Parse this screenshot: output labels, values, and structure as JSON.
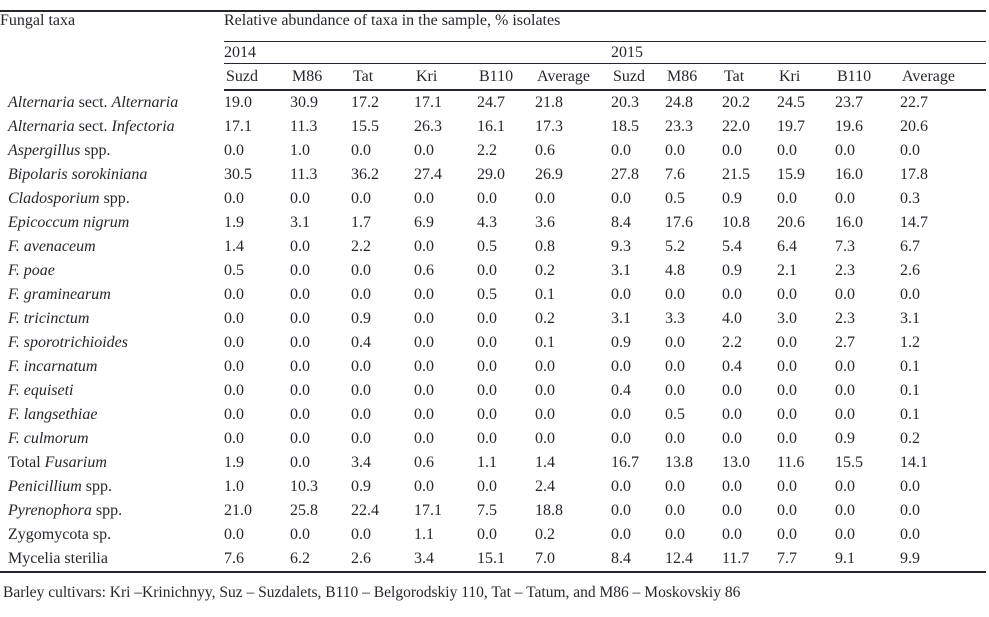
{
  "colors": {
    "text": "#26262e",
    "border": "#26262e",
    "background": "#ffffff"
  },
  "page": {
    "footnote": "Barley cultivars: Kri –Krinichnyy, Suz – Suzdalets, B110 – Belgorodskiy 110, Tat – Tatum, and M86 – Moskovskiy 86"
  },
  "table": {
    "corner_header": "Fungal taxa",
    "span_header": "Relative abundance of taxa in the sample, % isolates",
    "year_2014": "2014",
    "year_2015": "2015",
    "columns": [
      "Suzd",
      "M86",
      "Tat",
      "Kri",
      "B110",
      "Average",
      "Suzd",
      "M86",
      "Tat",
      "Kri",
      "B110",
      "Average"
    ],
    "rows": [
      {
        "name": [
          {
            "t": "Alternaria",
            "i": true
          },
          {
            "t": " sect. ",
            "i": false
          },
          {
            "t": "Alternaria",
            "i": true
          }
        ],
        "values": [
          "19.0",
          "30.9",
          "17.2",
          "17.1",
          "24.7",
          "21.8",
          "20.3",
          "24.8",
          "20.2",
          "24.5",
          "23.7",
          "22.7"
        ]
      },
      {
        "name": [
          {
            "t": "Alternaria",
            "i": true
          },
          {
            "t": " sect. ",
            "i": false
          },
          {
            "t": "Infectoria",
            "i": true
          }
        ],
        "values": [
          "17.1",
          "11.3",
          "15.5",
          "26.3",
          "16.1",
          "17.3",
          "18.5",
          "23.3",
          "22.0",
          "19.7",
          "19.6",
          "20.6"
        ]
      },
      {
        "name": [
          {
            "t": "Aspergillus",
            "i": true
          },
          {
            "t": " spp.",
            "i": false
          }
        ],
        "values": [
          "0.0",
          "1.0",
          "0.0",
          "0.0",
          "2.2",
          "0.6",
          "0.0",
          "0.0",
          "0.0",
          "0.0",
          "0.0",
          "0.0"
        ]
      },
      {
        "name": [
          {
            "t": "Bipolaris sorokiniana",
            "i": true
          }
        ],
        "values": [
          "30.5",
          "11.3",
          "36.2",
          "27.4",
          "29.0",
          "26.9",
          "27.8",
          "7.6",
          "21.5",
          "15.9",
          "16.0",
          "17.8"
        ]
      },
      {
        "name": [
          {
            "t": "Cladosporium",
            "i": true
          },
          {
            "t": " spp.",
            "i": false
          }
        ],
        "values": [
          "0.0",
          "0.0",
          "0.0",
          "0.0",
          "0.0",
          "0.0",
          "0.0",
          "0.5",
          "0.9",
          "0.0",
          "0.0",
          "0.3"
        ]
      },
      {
        "name": [
          {
            "t": "Epicoccum nigrum",
            "i": true
          }
        ],
        "values": [
          "1.9",
          "3.1",
          "1.7",
          "6.9",
          "4.3",
          "3.6",
          "8.4",
          "17.6",
          "10.8",
          "20.6",
          "16.0",
          "14.7"
        ]
      },
      {
        "name": [
          {
            "t": "F. avenaceum",
            "i": true
          }
        ],
        "values": [
          "1.4",
          "0.0",
          "2.2",
          "0.0",
          "0.5",
          "0.8",
          "9.3",
          "5.2",
          "5.4",
          "6.4",
          "7.3",
          "6.7"
        ]
      },
      {
        "name": [
          {
            "t": "F. poae",
            "i": true
          }
        ],
        "values": [
          "0.5",
          "0.0",
          "0.0",
          "0.6",
          "0.0",
          "0.2",
          "3.1",
          "4.8",
          "0.9",
          "2.1",
          "2.3",
          "2.6"
        ]
      },
      {
        "name": [
          {
            "t": "F. graminearum",
            "i": true
          }
        ],
        "values": [
          "0.0",
          "0.0",
          "0.0",
          "0.0",
          "0.5",
          "0.1",
          "0.0",
          "0.0",
          "0.0",
          "0.0",
          "0.0",
          "0.0"
        ]
      },
      {
        "name": [
          {
            "t": "F. tricinctum",
            "i": true
          }
        ],
        "values": [
          "0.0",
          "0.0",
          "0.9",
          "0.0",
          "0.0",
          "0.2",
          "3.1",
          "3.3",
          "4.0",
          "3.0",
          "2.3",
          "3.1"
        ]
      },
      {
        "name": [
          {
            "t": "F. sporotrichioides",
            "i": true
          }
        ],
        "values": [
          "0.0",
          "0.0",
          "0.4",
          "0.0",
          "0.0",
          "0.1",
          "0.9",
          "0.0",
          "2.2",
          "0.0",
          "2.7",
          "1.2"
        ]
      },
      {
        "name": [
          {
            "t": "F. incarnatum",
            "i": true
          }
        ],
        "values": [
          "0.0",
          "0.0",
          "0.0",
          "0.0",
          "0.0",
          "0.0",
          "0.0",
          "0.0",
          "0.4",
          "0.0",
          "0.0",
          "0.1"
        ]
      },
      {
        "name": [
          {
            "t": "F. equiseti",
            "i": true
          }
        ],
        "values": [
          "0.0",
          "0.0",
          "0.0",
          "0.0",
          "0.0",
          "0.0",
          "0.4",
          "0.0",
          "0.0",
          "0.0",
          "0.0",
          "0.1"
        ]
      },
      {
        "name": [
          {
            "t": "F. langsethiae",
            "i": true
          }
        ],
        "values": [
          "0.0",
          "0.0",
          "0.0",
          "0.0",
          "0.0",
          "0.0",
          "0.0",
          "0.5",
          "0.0",
          "0.0",
          "0.0",
          "0.1"
        ]
      },
      {
        "name": [
          {
            "t": "F. culmorum",
            "i": true
          }
        ],
        "values": [
          "0.0",
          "0.0",
          "0.0",
          "0.0",
          "0.0",
          "0.0",
          "0.0",
          "0.0",
          "0.0",
          "0.0",
          "0.9",
          "0.2"
        ]
      },
      {
        "name": [
          {
            "t": "Total ",
            "i": false
          },
          {
            "t": "Fusarium",
            "i": true
          }
        ],
        "values": [
          "1.9",
          "0.0",
          "3.4",
          "0.6",
          "1.1",
          "1.4",
          "16.7",
          "13.8",
          "13.0",
          "11.6",
          "15.5",
          "14.1"
        ]
      },
      {
        "name": [
          {
            "t": "Penicillium",
            "i": true
          },
          {
            "t": " spp.",
            "i": false
          }
        ],
        "values": [
          "1.0",
          "10.3",
          "0.9",
          "0.0",
          "0.0",
          "2.4",
          "0.0",
          "0.0",
          "0.0",
          "0.0",
          "0.0",
          "0.0"
        ]
      },
      {
        "name": [
          {
            "t": "Pyrenophora",
            "i": true
          },
          {
            "t": " spp.",
            "i": false
          }
        ],
        "values": [
          "21.0",
          "25.8",
          "22.4",
          "17.1",
          "7.5",
          "18.8",
          "0.0",
          "0.0",
          "0.0",
          "0.0",
          "0.0",
          "0.0"
        ]
      },
      {
        "name": [
          {
            "t": "Zygomycota sp.",
            "i": false
          }
        ],
        "values": [
          "0.0",
          "0.0",
          "0.0",
          "1.1",
          "0.0",
          "0.2",
          "0.0",
          "0.0",
          "0.0",
          "0.0",
          "0.0",
          "0.0"
        ]
      },
      {
        "name": [
          {
            "t": "Mycelia sterilia",
            "i": false
          }
        ],
        "values": [
          "7.6",
          "6.2",
          "2.6",
          "3.4",
          "15.1",
          "7.0",
          "8.4",
          "12.4",
          "11.7",
          "7.7",
          "9.1",
          "9.9"
        ]
      }
    ]
  }
}
